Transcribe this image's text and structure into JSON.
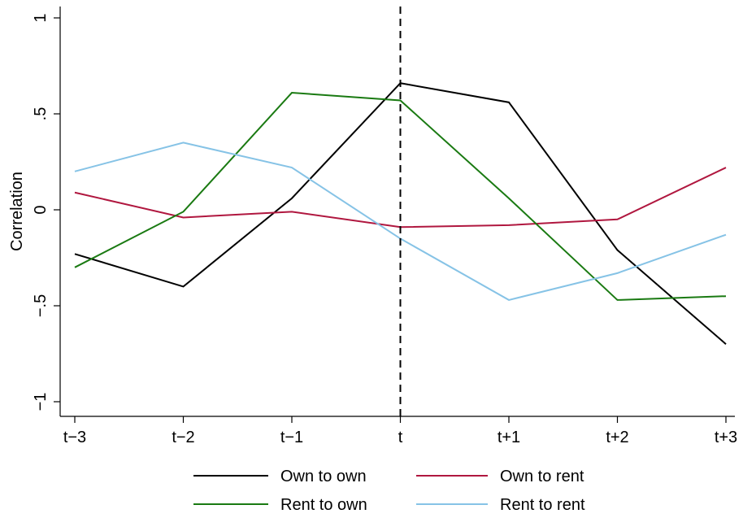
{
  "chart_data": {
    "type": "line",
    "title": "",
    "xlabel": "",
    "ylabel": "Correlation",
    "categories": [
      "t−3",
      "t−2",
      "t−1",
      "t",
      "t+1",
      "t+2",
      "t+3"
    ],
    "ylim": [
      -1,
      1
    ],
    "yticks": [
      -1,
      -0.5,
      0,
      0.5,
      1
    ],
    "ytick_labels": [
      "−1",
      "−.5",
      "0",
      ".5",
      "1"
    ],
    "reference_line": {
      "category": "t",
      "style": "dashed"
    },
    "grid": false,
    "legend_position": "bottom",
    "series": [
      {
        "name": "Own to own",
        "color": "#000000",
        "values": [
          -0.23,
          -0.4,
          0.06,
          0.66,
          0.56,
          -0.21,
          -0.7
        ]
      },
      {
        "name": "Own to rent",
        "color": "#b0173f",
        "values": [
          0.09,
          -0.04,
          -0.01,
          -0.09,
          -0.08,
          -0.05,
          0.22
        ]
      },
      {
        "name": "Rent to own",
        "color": "#1a7a12",
        "values": [
          -0.3,
          -0.01,
          0.61,
          0.57,
          0.06,
          -0.47,
          -0.45
        ]
      },
      {
        "name": "Rent to rent",
        "color": "#86c3e6",
        "values": [
          0.2,
          0.35,
          0.22,
          -0.15,
          -0.47,
          -0.33,
          -0.13
        ]
      }
    ]
  }
}
